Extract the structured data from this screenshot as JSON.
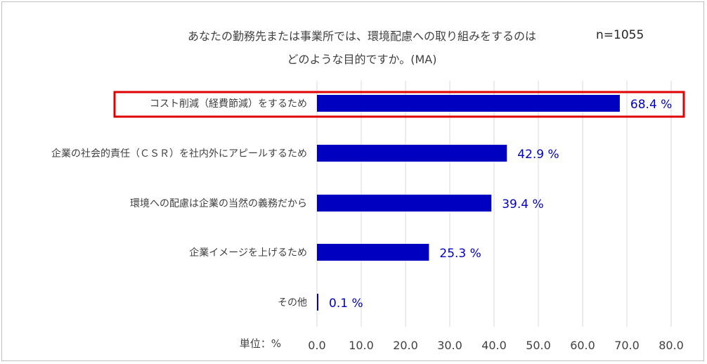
{
  "chart_data": {
    "type": "bar",
    "orientation": "horizontal",
    "title_lines": [
      "あなたの勤務先または事業所では、環境配慮への取り組みをするのは",
      "どのような目的ですか。(MA)"
    ],
    "sample_size": "n=1055",
    "unit_label": "単位：%",
    "categories": [
      "コスト削減（経費節減）をするため",
      "企業の社会的責任（ＣＳＲ）を社内外にアピールするため",
      "環境への配慮は企業の当然の義務だから",
      "企業イメージを上げるため",
      "その他"
    ],
    "values": [
      68.4,
      42.9,
      39.4,
      25.3,
      0.1
    ],
    "value_labels": [
      "68.4 %",
      "42.9 %",
      "39.4 %",
      "25.3 %",
      "0.1 %"
    ],
    "xlim": [
      0,
      80
    ],
    "xticks": [
      "0.0",
      "10.0",
      "20.0",
      "30.0",
      "40.0",
      "50.0",
      "60.0",
      "70.0",
      "80.0"
    ],
    "grid": true,
    "highlighted_category_index": 0,
    "colors": {
      "bar": "#0000c0",
      "data_label": "#0000c0",
      "grid": "#d9d9d9",
      "highlight_border": "#e00000"
    }
  }
}
